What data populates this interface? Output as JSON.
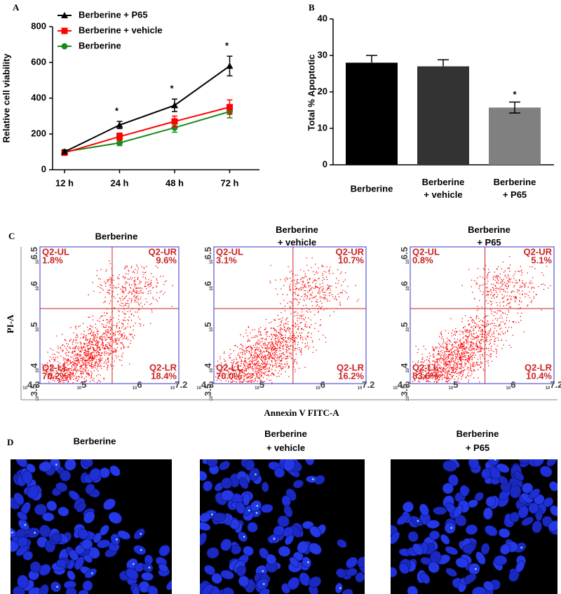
{
  "panel_labels": [
    "A",
    "B",
    "C",
    "D"
  ],
  "chart_data": [
    {
      "type": "line",
      "ylabel": "Relative cell viability",
      "categories": [
        "12 h",
        "24 h",
        "48 h",
        "72 h"
      ],
      "series": [
        {
          "name": "Berberine + P65",
          "color": "#000000",
          "marker": "triangle",
          "values": [
            100,
            250,
            360,
            580
          ],
          "errors": [
            10,
            20,
            35,
            55
          ]
        },
        {
          "name": "Berberine + vehicle",
          "color": "#ff0000",
          "marker": "square",
          "values": [
            95,
            185,
            270,
            350
          ],
          "errors": [
            10,
            20,
            30,
            40
          ]
        },
        {
          "name": "Berberine",
          "color": "#1a8a1a",
          "marker": "circle",
          "values": [
            100,
            150,
            235,
            325
          ],
          "errors": [
            10,
            15,
            25,
            35
          ]
        }
      ],
      "annotations": [
        "*",
        "*",
        "*"
      ],
      "ylim": [
        0,
        800
      ],
      "yticks": [
        0,
        200,
        400,
        600,
        800
      ]
    },
    {
      "type": "bar",
      "ylabel": "Total % Apoptotic",
      "categories": [
        "Berberine",
        "Berberine + vehicle",
        "Berberine + P65"
      ],
      "values": [
        28,
        27,
        15.7
      ],
      "errors": [
        2,
        1.8,
        1.5
      ],
      "colors": [
        "#000000",
        "#333333",
        "#808080"
      ],
      "annotation": "*",
      "ylim": [
        0,
        40
      ],
      "yticks": [
        0,
        10,
        20,
        30,
        40
      ]
    }
  ],
  "flow": {
    "xlabel": "Annexin V FITC-A",
    "ylabel": "PI-A",
    "xticks": [
      "10^4.3",
      "10^5",
      "10^6",
      "10^7.2"
    ],
    "yticks": [
      "10^3.5",
      "10^4",
      "10^5",
      "10^6",
      "10^6.5"
    ],
    "panels": [
      {
        "title": "Berberine",
        "quadrants": [
          [
            "Q2-UL",
            "1.8%"
          ],
          [
            "Q2-UR",
            "9.6%"
          ],
          [
            "Q2-LL",
            "70.2%"
          ],
          [
            "Q2-LR",
            "18.4%"
          ]
        ]
      },
      {
        "title": "Berberine + vehicle",
        "quadrants": [
          [
            "Q2-UL",
            "3.1%"
          ],
          [
            "Q2-UR",
            "10.7%"
          ],
          [
            "Q2-LL",
            "70.0%"
          ],
          [
            "Q2-LR",
            "16.2%"
          ]
        ]
      },
      {
        "title": "Berberine + P65",
        "quadrants": [
          [
            "Q2-UL",
            "0.8%"
          ],
          [
            "Q2-UR",
            "5.1%"
          ],
          [
            "Q2-LL",
            "83.6%"
          ],
          [
            "Q2-LR",
            "10.4%"
          ]
        ]
      }
    ]
  },
  "images": {
    "titles": [
      "Berberine",
      "Berberine + vehicle",
      "Berberine + P65"
    ]
  }
}
